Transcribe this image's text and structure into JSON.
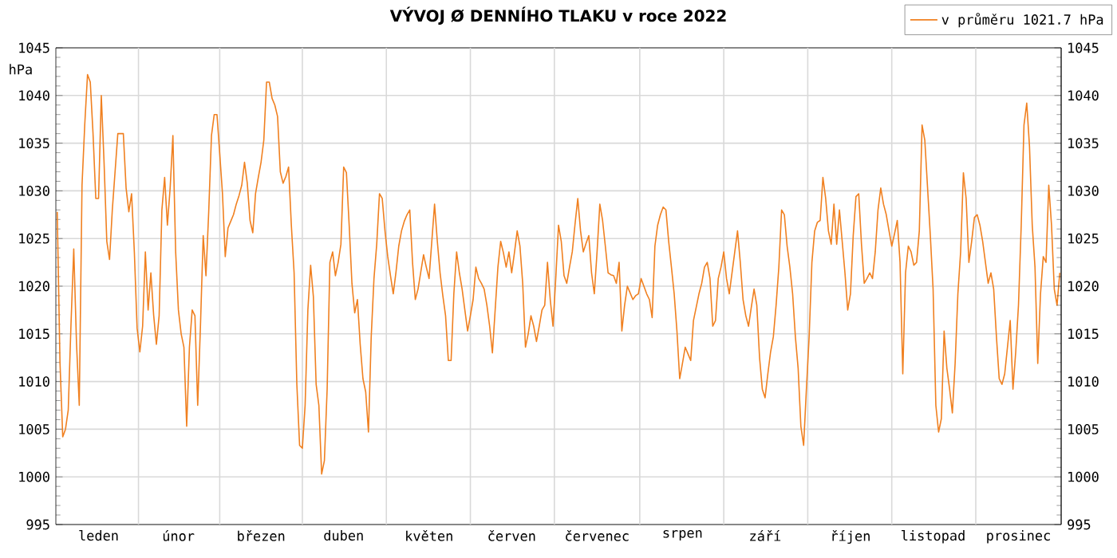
{
  "chart_data": {
    "type": "line",
    "title": "VÝVOJ Ø DENNÍHO TLAKU v roce 2022",
    "ylabel": "hPa",
    "categories": [
      null,
      null,
      null,
      null,
      null,
      null,
      null,
      null,
      null,
      null,
      null,
      null,
      null,
      null,
      null,
      "leden",
      null,
      null,
      null,
      null,
      null,
      null,
      null,
      null,
      null,
      null,
      null,
      null,
      null,
      null,
      null,
      null,
      null,
      null,
      null,
      null,
      null,
      null,
      null,
      null,
      null,
      null,
      null,
      null,
      "únor",
      null,
      null,
      null,
      null,
      null,
      null,
      null,
      null,
      null,
      null,
      null,
      null,
      null,
      null,
      null,
      null,
      null,
      null,
      null,
      null,
      null,
      null,
      null,
      null,
      null,
      null,
      null,
      null,
      null,
      "březen",
      null,
      null,
      null,
      null,
      null,
      null,
      null,
      null,
      null,
      null,
      null,
      null,
      null,
      null,
      null,
      null,
      null,
      null,
      null,
      null,
      null,
      null,
      null,
      null,
      null,
      null,
      null,
      null,
      null,
      "duben",
      null,
      null,
      null,
      null,
      null,
      null,
      null,
      null,
      null,
      null,
      null,
      null,
      null,
      null,
      null,
      null,
      null,
      null,
      null,
      null,
      null,
      null,
      null,
      null,
      null,
      null,
      null,
      null,
      null,
      null,
      "květen",
      null,
      null,
      null,
      null,
      null,
      null,
      null,
      null,
      null,
      null,
      null,
      null,
      null,
      null,
      null,
      null,
      null,
      null,
      null,
      null,
      null,
      null,
      null,
      null,
      null,
      null,
      null,
      null,
      null,
      "červen",
      null,
      null,
      null,
      null,
      null,
      null,
      null,
      null,
      null,
      null,
      null,
      null,
      null,
      null,
      null,
      null,
      null,
      null,
      null,
      null,
      null,
      null,
      null,
      null,
      null,
      null,
      null,
      null,
      null,
      null,
      "červenec",
      null,
      null,
      null,
      null,
      null,
      null,
      null,
      null,
      null,
      null,
      null,
      null,
      null,
      null,
      null,
      null,
      null,
      null,
      null,
      null,
      null,
      null,
      null,
      null,
      null,
      null,
      null,
      null,
      null,
      null,
      "srpen",
      null,
      null,
      null,
      null,
      null,
      null,
      null,
      null,
      null,
      null,
      null,
      null,
      null,
      null,
      null,
      null,
      null,
      null,
      null,
      null,
      null,
      null,
      null,
      null,
      null,
      null,
      null,
      null,
      null,
      "září",
      null,
      null,
      null,
      null,
      null,
      null,
      null,
      null,
      null,
      null,
      null,
      null,
      null,
      null,
      null,
      null,
      null,
      null,
      null,
      null,
      null,
      null,
      null,
      null,
      null,
      null,
      null,
      null,
      null,
      null,
      "říjen",
      null,
      null,
      null,
      null,
      null,
      null,
      null,
      null,
      null,
      null,
      null,
      null,
      null,
      null,
      null,
      null,
      null,
      null,
      null,
      null,
      null,
      null,
      null,
      null,
      null,
      null,
      null,
      null,
      null,
      "listopad",
      null,
      null,
      null,
      null,
      null,
      null,
      null,
      null,
      null,
      null,
      null,
      null,
      null,
      null,
      null,
      null,
      null,
      null,
      null,
      null,
      null,
      null,
      null,
      null,
      null,
      null,
      null,
      null,
      null,
      null,
      "prosinec",
      null,
      null,
      null,
      null,
      null,
      null,
      null,
      null,
      null,
      null,
      null,
      null,
      null,
      null,
      null
    ],
    "ylim": [
      995,
      1045
    ],
    "yticks": [
      995,
      1000,
      1005,
      1010,
      1015,
      1020,
      1025,
      1030,
      1035,
      1040,
      1045
    ],
    "y2lim": [
      995,
      1045
    ],
    "y2ticks": [
      995,
      1000,
      1005,
      1010,
      1015,
      1020,
      1025,
      1030,
      1035,
      1040,
      1045
    ],
    "grid": true,
    "legend": "top right",
    "marker": "none",
    "line_style": "solid",
    "series": [
      {
        "name": "v průměru 1021.7 hPa",
        "color": "#f08020",
        "values": [
          1027.8,
          1012,
          1004.2,
          1005,
          1007,
          1016,
          1023.9,
          1014,
          1007.5,
          1030.6,
          1037,
          1042.2,
          1041.4,
          1036,
          1029.2,
          1029.2,
          1040,
          1033,
          1024.7,
          1022.8,
          1028,
          1032,
          1036,
          1036,
          1036,
          1030.3,
          1027.8,
          1029.7,
          1023.6,
          1015.6,
          1013.1,
          1015.8,
          1023.6,
          1017.5,
          1021.4,
          1017,
          1013.9,
          1016.9,
          1028,
          1031.4,
          1026.4,
          1030.3,
          1035.8,
          1023.6,
          1017.5,
          1015,
          1013.6,
          1005.3,
          1013.6,
          1017.5,
          1016.9,
          1007.5,
          1015.8,
          1025.3,
          1021.1,
          1027.8,
          1035.8,
          1038,
          1038,
          1033.9,
          1029.7,
          1023.1,
          1026.1,
          1026.8,
          1027.5,
          1028.6,
          1029.5,
          1030.6,
          1033,
          1030.8,
          1026.9,
          1025.6,
          1029.7,
          1031.4,
          1033,
          1035.3,
          1041.4,
          1041.4,
          1039.7,
          1039,
          1037.8,
          1032,
          1030.8,
          1031.5,
          1032.5,
          1026.4,
          1021.4,
          1009.7,
          1003.3,
          1003,
          1007.5,
          1017.5,
          1022.2,
          1018.9,
          1009.7,
          1007.5,
          1000.3,
          1001.7,
          1009.2,
          1022.5,
          1023.6,
          1021.1,
          1022.5,
          1024.4,
          1032.5,
          1031.9,
          1026.4,
          1020.3,
          1017.2,
          1018.6,
          1013.9,
          1010.3,
          1008.9,
          1004.7,
          1014.7,
          1020.8,
          1024.4,
          1029.7,
          1029.2,
          1025.8,
          1023.1,
          1021.1,
          1019.2,
          1021.5,
          1024.2,
          1025.8,
          1026.8,
          1027.5,
          1028,
          1022.5,
          1018.6,
          1019.7,
          1021.5,
          1023.3,
          1022,
          1020.8,
          1024.7,
          1028.6,
          1024.7,
          1021.4,
          1019,
          1016.9,
          1012.2,
          1012.2,
          1019.2,
          1023.6,
          1021.4,
          1019.7,
          1017.5,
          1015.3,
          1016.9,
          1018.6,
          1022,
          1020.8,
          1020.3,
          1019.7,
          1018,
          1015.8,
          1013,
          1017.5,
          1022,
          1024.7,
          1023.5,
          1022,
          1023.6,
          1021.4,
          1023.5,
          1025.8,
          1024.2,
          1020.3,
          1013.6,
          1015,
          1016.9,
          1015.8,
          1014.2,
          1015.8,
          1017.5,
          1018,
          1022.5,
          1018.6,
          1015.8,
          1020.8,
          1026.4,
          1024.7,
          1021.1,
          1020.3,
          1022,
          1023.6,
          1026.5,
          1029.2,
          1025.8,
          1023.6,
          1024.5,
          1025.3,
          1021.4,
          1019.2,
          1023.6,
          1028.6,
          1026.9,
          1024.2,
          1021.4,
          1021.2,
          1021.1,
          1020.3,
          1022.5,
          1015.3,
          1018,
          1020,
          1019.3,
          1018.6,
          1019,
          1019.2,
          1020.8,
          1020,
          1019.2,
          1018.6,
          1016.7,
          1024.2,
          1026.4,
          1027.5,
          1028.3,
          1028,
          1024.7,
          1022,
          1019.2,
          1015.3,
          1010.3,
          1011.9,
          1013.6,
          1012.9,
          1012.2,
          1016.4,
          1017.8,
          1019.2,
          1020.3,
          1022,
          1022.5,
          1020.8,
          1015.8,
          1016.4,
          1020.8,
          1022,
          1023.6,
          1020.8,
          1019.2,
          1021.4,
          1023.6,
          1025.8,
          1022.5,
          1018.6,
          1016.9,
          1015.8,
          1017.8,
          1019.7,
          1018,
          1012.5,
          1009.2,
          1008.3,
          1010.8,
          1013.1,
          1014.7,
          1018,
          1022,
          1028,
          1027.5,
          1024.2,
          1022,
          1019.2,
          1014.7,
          1011.4,
          1005.3,
          1003.3,
          1009.2,
          1014.7,
          1022.5,
          1025.8,
          1026.7,
          1026.9,
          1031.4,
          1029.2,
          1025.8,
          1024.4,
          1028.6,
          1024.4,
          1028,
          1024.7,
          1021.4,
          1017.5,
          1019.2,
          1025.3,
          1029.4,
          1029.7,
          1024.4,
          1020.3,
          1020.8,
          1021.4,
          1020.8,
          1023.6,
          1028,
          1030.3,
          1028.6,
          1027.5,
          1025.8,
          1024.2,
          1025.5,
          1026.9,
          1022.5,
          1010.8,
          1021.4,
          1024.2,
          1023.6,
          1022.2,
          1022.5,
          1025.8,
          1036.9,
          1035.3,
          1030.3,
          1025.3,
          1019.7,
          1007.5,
          1004.7,
          1006.1,
          1015.3,
          1011.4,
          1009.2,
          1006.7,
          1011.9,
          1019.2,
          1023.6,
          1031.9,
          1029.2,
          1022.5,
          1024.7,
          1027.2,
          1027.5,
          1026.4,
          1024.7,
          1022.5,
          1020.3,
          1021.4,
          1019.7,
          1014.7,
          1010.3,
          1009.7,
          1010.8,
          1013.6,
          1016.4,
          1009.2,
          1013.1,
          1018,
          1026.4,
          1036.9,
          1039.2,
          1034.7,
          1026.4,
          1022,
          1011.9,
          1019.2,
          1023.1,
          1022.5,
          1030.6,
          1026.4,
          1019.7,
          1018,
          1021.4
        ]
      }
    ]
  }
}
